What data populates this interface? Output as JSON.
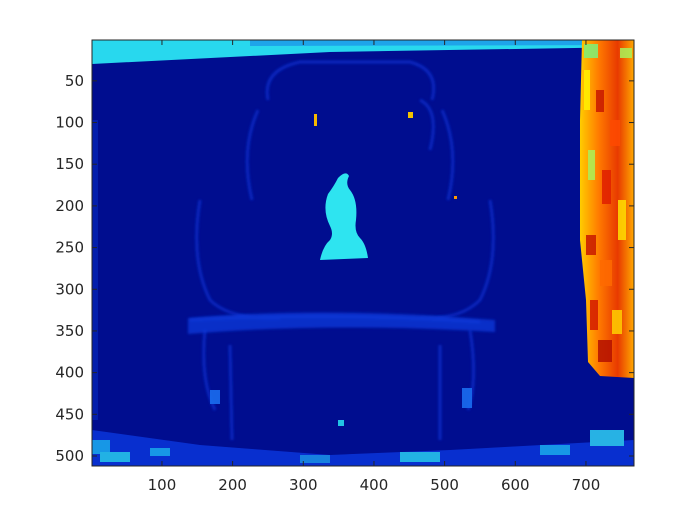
{
  "chart_data": {
    "type": "heatmap",
    "title": "",
    "xlabel": "",
    "ylabel": "",
    "xlim": [
      1,
      768
    ],
    "ylim": [
      1,
      512
    ],
    "y_reversed": true,
    "colormap": "jet",
    "grid": false,
    "colorbar": false,
    "xticks": [
      100,
      200,
      300,
      400,
      500,
      600,
      700
    ],
    "yticks": [
      50,
      100,
      150,
      200,
      250,
      300,
      350,
      400,
      450,
      500
    ],
    "xtick_labels": [
      "100",
      "200",
      "300",
      "400",
      "500",
      "600",
      "700"
    ],
    "ytick_labels": [
      "50",
      "100",
      "150",
      "200",
      "250",
      "300",
      "350",
      "400",
      "450",
      "500"
    ],
    "regions": [
      {
        "name": "background",
        "level": 0.08
      },
      {
        "name": "top-strip",
        "level": 0.38
      },
      {
        "name": "vase",
        "level": 0.42
      },
      {
        "name": "right-edge",
        "level": 0.74
      },
      {
        "name": "bottom-noise",
        "level": 0.25
      }
    ]
  }
}
